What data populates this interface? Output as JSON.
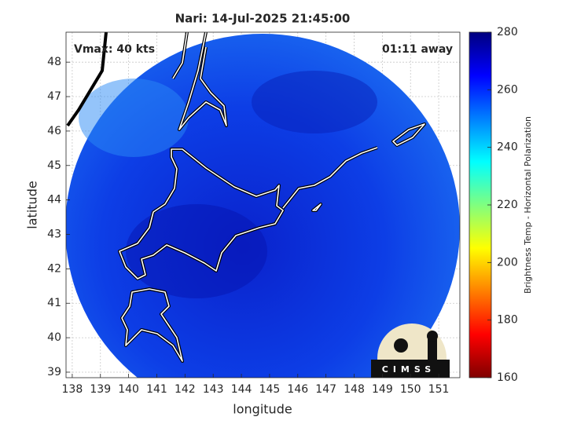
{
  "chart_data": {
    "type": "image",
    "title": "Nari: 14-Jul-2025 21:45:00",
    "annotations": [
      "Vmax: 40 kts",
      "01:11 away"
    ],
    "x_label": "longitude",
    "y_label": "latitude",
    "xlim": [
      137.78,
      151.75
    ],
    "ylim": [
      38.84,
      48.87
    ],
    "xticks": [
      138,
      139,
      140,
      141,
      142,
      143,
      144,
      145,
      146,
      147,
      148,
      149,
      150,
      151
    ],
    "yticks": [
      39,
      40,
      41,
      42,
      43,
      44,
      45,
      46,
      47,
      48
    ],
    "grid": true,
    "colorbar": {
      "label": "Brightness Temp - Horizontal Polarization",
      "colormap": "jet",
      "lim": [
        160,
        280
      ],
      "ticks": [
        160,
        180,
        200,
        220,
        240,
        260,
        280
      ]
    },
    "logo_text": "CIMSS"
  }
}
